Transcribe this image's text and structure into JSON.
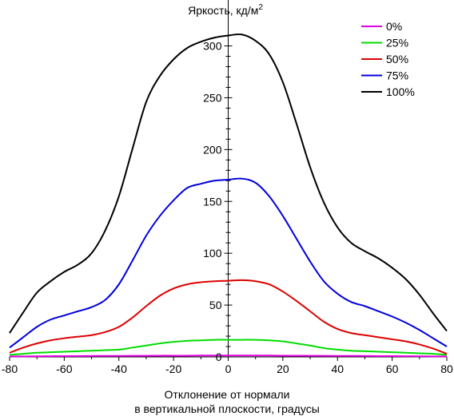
{
  "chart_data": {
    "type": "line",
    "ylabel": "Яркость, кд/м",
    "ylabel_superscript": "2",
    "xlabel_line1": "Отклонение от нормали",
    "xlabel_line2": "в вертикальной плоскости, градусы",
    "xlim": [
      -80,
      80
    ],
    "ylim": [
      0,
      320
    ],
    "x_ticks": [
      -80,
      -60,
      -40,
      -20,
      0,
      20,
      40,
      60,
      80
    ],
    "y_ticks": [
      0,
      50,
      100,
      150,
      200,
      250,
      300
    ],
    "grid": false,
    "legend_position": "top-right",
    "x": [
      -80,
      -75,
      -70,
      -65,
      -60,
      -55,
      -50,
      -45,
      -40,
      -35,
      -30,
      -25,
      -20,
      -15,
      -10,
      -5,
      0,
      5,
      10,
      15,
      20,
      25,
      30,
      35,
      40,
      45,
      50,
      55,
      60,
      65,
      70,
      75,
      80
    ],
    "series": [
      {
        "name": "0%",
        "color": "#e000e0",
        "values": [
          0.5,
          0.5,
          0.6,
          0.7,
          0.8,
          0.8,
          0.9,
          1.0,
          1.0,
          1.1,
          1.1,
          1.2,
          1.2,
          1.2,
          1.3,
          1.3,
          1.3,
          1.3,
          1.3,
          1.3,
          1.2,
          1.2,
          1.1,
          1.1,
          1.0,
          1.0,
          0.9,
          0.8,
          0.8,
          0.7,
          0.6,
          0.5,
          0.5
        ]
      },
      {
        "name": "25%",
        "color": "#00dd00",
        "values": [
          2,
          3,
          4,
          4.5,
          5,
          5.5,
          6,
          6.5,
          7,
          9,
          11,
          13,
          14.5,
          15.5,
          16,
          16.5,
          16.5,
          16.5,
          16.5,
          16,
          15,
          13,
          11,
          8.5,
          7,
          6,
          5.5,
          5,
          4.5,
          4,
          3.5,
          3,
          2
        ]
      },
      {
        "name": "50%",
        "color": "#dd0000",
        "values": [
          4,
          9,
          13,
          16,
          18,
          19.5,
          21,
          24,
          29,
          38,
          49,
          59,
          66,
          70,
          72,
          73,
          73.5,
          74,
          73,
          70,
          63,
          54,
          44,
          34,
          27,
          23,
          21,
          19,
          17,
          15,
          12,
          8,
          3
        ]
      },
      {
        "name": "75%",
        "color": "#0000dd",
        "values": [
          9,
          19,
          29,
          36,
          40,
          44,
          48,
          55,
          70,
          93,
          117,
          136,
          151,
          163,
          167,
          170,
          171,
          172,
          168,
          155,
          136,
          114,
          92,
          73,
          61,
          53,
          49,
          44,
          39,
          33,
          26,
          18,
          10
        ]
      },
      {
        "name": "100%",
        "color": "#000000",
        "values": [
          23,
          43,
          62,
          73,
          82,
          89,
          100,
          122,
          155,
          201,
          246,
          271,
          287,
          298,
          304,
          308,
          310,
          311,
          305,
          292,
          265,
          225,
          183,
          149,
          125,
          110,
          102,
          95,
          86,
          75,
          60,
          42,
          25
        ]
      }
    ]
  }
}
